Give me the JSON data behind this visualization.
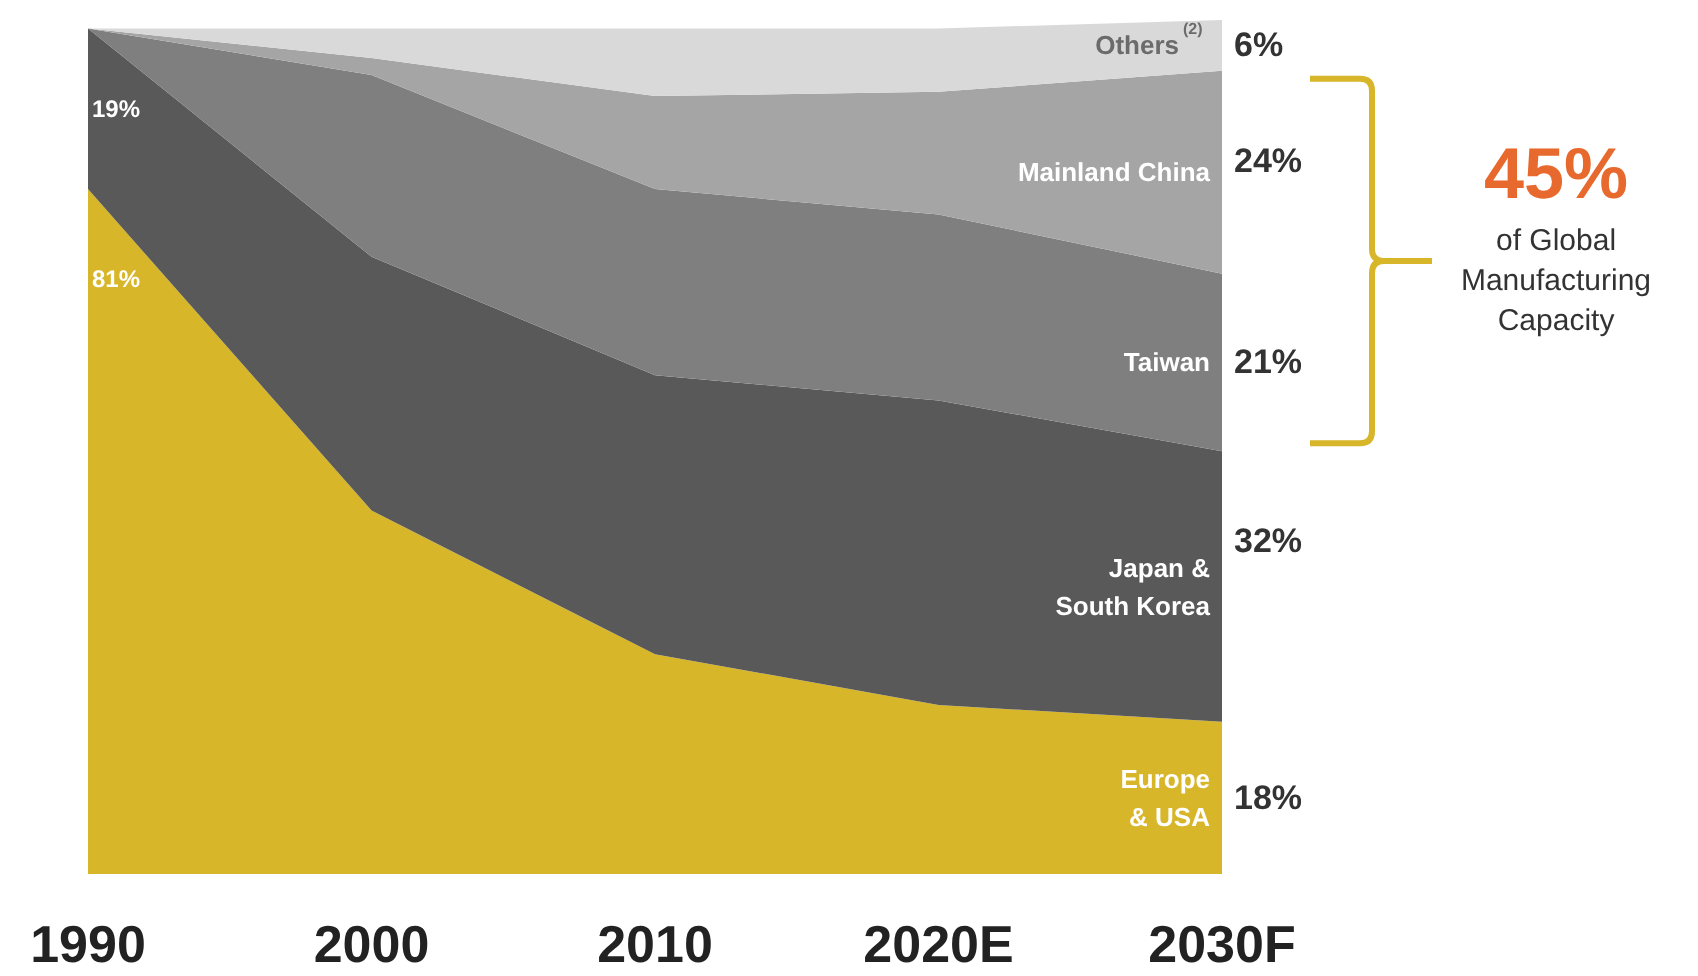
{
  "chart_data": {
    "type": "area",
    "stacked": true,
    "categories": [
      "1990",
      "2000",
      "2010",
      "2020E",
      "2030F"
    ],
    "series": [
      {
        "name": "Europe\n& USA",
        "color": "#d8b62a",
        "values": [
          81,
          43,
          26,
          20,
          18
        ],
        "value_labels": [
          "81%",
          null,
          null,
          null,
          "18%"
        ]
      },
      {
        "name": "Japan &\nSouth Korea",
        "color": "#595959",
        "values": [
          19,
          30,
          33,
          36,
          32
        ],
        "value_labels": [
          "19%",
          null,
          null,
          null,
          "32%"
        ]
      },
      {
        "name": "Taiwan",
        "color": "#7f7f7f",
        "values": [
          0,
          21.5,
          22,
          22,
          21
        ],
        "value_labels": [
          null,
          null,
          null,
          null,
          "21%"
        ]
      },
      {
        "name": "Mainland China",
        "color": "#a5a5a5",
        "values": [
          0,
          2,
          11,
          14.5,
          24
        ],
        "value_labels": [
          null,
          null,
          null,
          null,
          "24%"
        ]
      },
      {
        "name": "Others$^{(2)}$",
        "color": "#d9d9d9",
        "values": [
          0,
          3.5,
          8,
          7.5,
          6
        ],
        "value_labels": [
          null,
          null,
          null,
          null,
          "6%"
        ]
      }
    ],
    "annotations": [
      "45%",
      "of Global\nManufacturing\nCapacity"
    ]
  }
}
